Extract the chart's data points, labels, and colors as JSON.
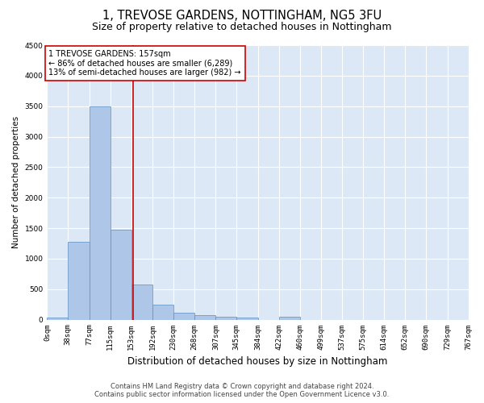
{
  "title": "1, TREVOSE GARDENS, NOTTINGHAM, NG5 3FU",
  "subtitle": "Size of property relative to detached houses in Nottingham",
  "xlabel": "Distribution of detached houses by size in Nottingham",
  "ylabel": "Number of detached properties",
  "bar_values": [
    40,
    1280,
    3500,
    1480,
    570,
    240,
    115,
    80,
    50,
    40,
    0,
    50,
    0,
    0,
    0,
    0,
    0,
    0,
    0,
    0
  ],
  "bin_edges": [
    0,
    38,
    77,
    115,
    153,
    192,
    230,
    268,
    307,
    345,
    384,
    422,
    460,
    499,
    537,
    575,
    614,
    652,
    690,
    729,
    767
  ],
  "tick_labels": [
    "0sqm",
    "38sqm",
    "77sqm",
    "115sqm",
    "153sqm",
    "192sqm",
    "230sqm",
    "268sqm",
    "307sqm",
    "345sqm",
    "384sqm",
    "422sqm",
    "460sqm",
    "499sqm",
    "537sqm",
    "575sqm",
    "614sqm",
    "652sqm",
    "690sqm",
    "729sqm",
    "767sqm"
  ],
  "bar_color": "#aec6e8",
  "bar_edge_color": "#5a8fc2",
  "ylim": [
    0,
    4500
  ],
  "yticks": [
    0,
    500,
    1000,
    1500,
    2000,
    2500,
    3000,
    3500,
    4000,
    4500
  ],
  "property_size": 157,
  "vline_color": "#cc0000",
  "annotation_title": "1 TREVOSE GARDENS: 157sqm",
  "annotation_line1": "← 86% of detached houses are smaller (6,289)",
  "annotation_line2": "13% of semi-detached houses are larger (982) →",
  "annotation_box_color": "#ffffff",
  "annotation_box_edge": "#cc0000",
  "footer1": "Contains HM Land Registry data © Crown copyright and database right 2024.",
  "footer2": "Contains public sector information licensed under the Open Government Licence v3.0.",
  "background_color": "#dce8f5",
  "grid_color": "#ffffff",
  "title_fontsize": 10.5,
  "subtitle_fontsize": 9,
  "tick_fontsize": 6.5,
  "ylabel_fontsize": 7.5,
  "xlabel_fontsize": 8.5,
  "footer_fontsize": 6.0,
  "annotation_fontsize": 7.0
}
